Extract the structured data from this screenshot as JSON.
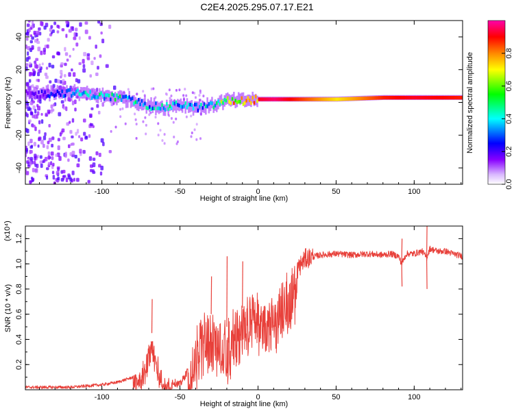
{
  "title": "C2E4.2025.295.07.17.E21",
  "chart_data": [
    {
      "type": "heatmap",
      "name": "spectrogram",
      "xlabel": "Height of straight line (km)",
      "ylabel": "Frequency (Hz)",
      "xlim": [
        -149,
        131
      ],
      "ylim": [
        -50,
        50
      ],
      "x_ticks": [
        -100,
        -50,
        0,
        50,
        100
      ],
      "y_ticks": [
        -40,
        -20,
        0,
        20,
        40
      ],
      "colorbar": {
        "label": "Normalized spectral amplitude",
        "range": [
          0,
          1
        ],
        "ticks": [
          0.0,
          0.2,
          0.4,
          0.6,
          0.8
        ],
        "colormap": [
          "#ffffff",
          "#8800ff",
          "#0000ff",
          "#00ffff",
          "#00ff00",
          "#ffff00",
          "#ff8800",
          "#ff0000",
          "#ff00aa"
        ]
      },
      "ridge": {
        "description": "dominant frequency vs height",
        "x": [
          -148,
          -120,
          -100,
          -90,
          -80,
          -70,
          -60,
          -50,
          -40,
          -30,
          -25,
          -20,
          -10,
          0,
          10,
          30,
          50,
          80,
          100,
          130
        ],
        "freq_hz": [
          5,
          6,
          4,
          3,
          1,
          -2,
          -3,
          -1,
          -3,
          -2,
          0,
          1,
          1,
          2,
          2,
          2,
          2,
          3,
          3,
          3
        ],
        "amplitude": [
          0.15,
          0.35,
          0.45,
          0.45,
          0.45,
          0.4,
          0.45,
          0.4,
          0.35,
          0.45,
          0.55,
          0.7,
          0.85,
          0.9,
          0.95,
          0.8,
          0.65,
          0.85,
          0.9,
          0.85
        ]
      }
    },
    {
      "type": "line",
      "name": "snr",
      "xlabel": "Height of straight line (km)",
      "ylabel": "SNR (10 * v/v)",
      "y_multiplier": "(x10⁴)",
      "xlim": [
        -149,
        131
      ],
      "ylim": [
        0,
        1.3
      ],
      "x_ticks": [
        -100,
        -50,
        0,
        50,
        100
      ],
      "y_ticks": [
        0.2,
        0.4,
        0.6,
        0.8,
        1.0,
        1.2
      ],
      "color": "#e8403a",
      "series_envelope": {
        "x": [
          -149,
          -120,
          -100,
          -90,
          -80,
          -72,
          -68,
          -66,
          -62,
          -58,
          -50,
          -45,
          -40,
          -35,
          -30,
          -25,
          -20,
          -15,
          -10,
          -5,
          0,
          5,
          10,
          15,
          20,
          25,
          30,
          40,
          50,
          60,
          70,
          80,
          85,
          90,
          92,
          95,
          100,
          105,
          108,
          110,
          115,
          120,
          125,
          131
        ],
        "y": [
          0.02,
          0.02,
          0.04,
          0.06,
          0.1,
          0.25,
          0.45,
          0.3,
          0.15,
          0.08,
          0.04,
          0.15,
          0.45,
          0.55,
          0.6,
          0.55,
          0.5,
          0.6,
          0.65,
          0.75,
          0.7,
          0.7,
          0.72,
          0.85,
          0.9,
          0.95,
          1.04,
          1.07,
          1.08,
          1.07,
          1.08,
          1.07,
          1.08,
          1.06,
          1.0,
          1.08,
          1.08,
          1.1,
          1.05,
          1.12,
          1.1,
          1.1,
          1.08,
          1.06
        ],
        "spikes": [
          {
            "x": -68,
            "y": 0.72
          },
          {
            "x": -30,
            "y": 0.9
          },
          {
            "x": -20,
            "y": 1.06
          },
          {
            "x": -10,
            "y": 1.02
          },
          {
            "x": 92,
            "y": 1.2
          },
          {
            "x": 92,
            "y": 0.82
          },
          {
            "x": 108,
            "y": 1.3
          },
          {
            "x": 108,
            "y": 0.8
          }
        ]
      }
    }
  ]
}
